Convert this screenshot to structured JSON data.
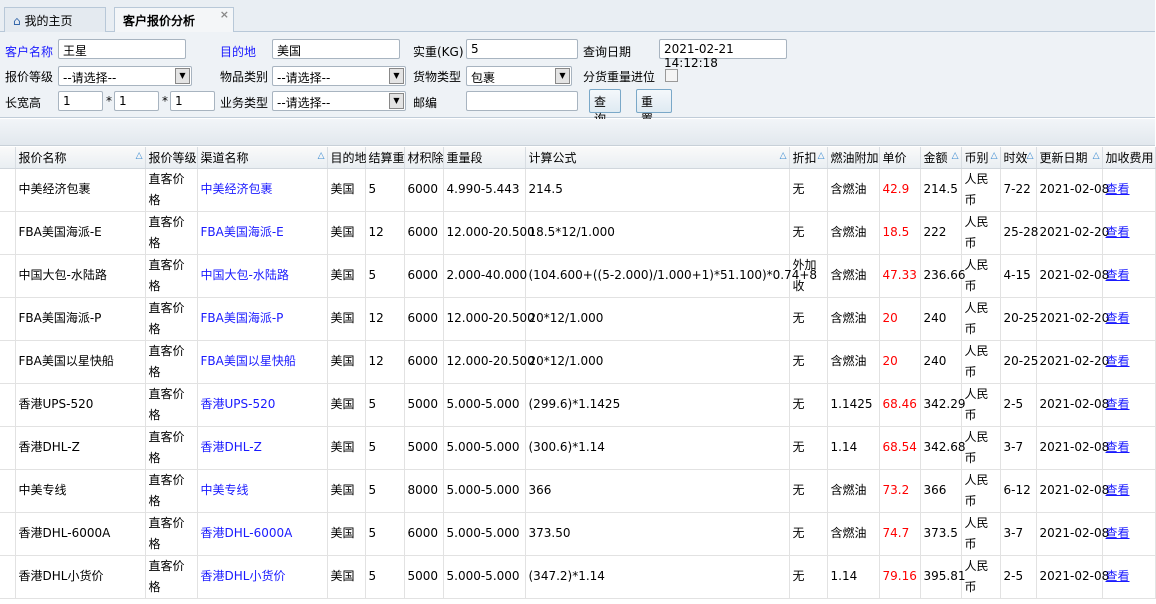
{
  "tabs": [
    {
      "label": "我的主页",
      "icon": "home-icon"
    },
    {
      "label": "客户报价分析",
      "close": "×"
    }
  ],
  "form": {
    "customer_label": "客户名称",
    "customer_value": "王星",
    "dest_label": "目的地",
    "dest_value": "美国",
    "weight_label": "实重(KG)",
    "weight_value": "5",
    "date_label": "查询日期",
    "date_value": "2021-02-21 14:12:18",
    "level_label": "报价等级",
    "level_value": "--请选择--",
    "item_label": "物品类别",
    "item_value": "--请选择--",
    "cargo_label": "货物类型",
    "cargo_value": "包裹",
    "split_label": "分货重量进位",
    "dims_label": "长宽高",
    "l": "1",
    "w": "1",
    "h": "1",
    "times": "*",
    "biz_label": "业务类型",
    "biz_value": "--请选择--",
    "zip_label": "邮编",
    "zip_value": "",
    "query": "查询",
    "reset": "重 置"
  },
  "table": {
    "columns": [
      "",
      "报价名称",
      "报价等级",
      "渠道名称",
      "目的地",
      "结算重",
      "材积除",
      "重量段",
      "计算公式",
      "折扣",
      "燃油附加",
      "单价",
      "金额",
      "币别",
      "时效",
      "更新日期",
      "加收费用"
    ],
    "rows": [
      [
        "中美经济包裹",
        "直客价格",
        "中美经济包裹",
        "美国",
        "5",
        "6000",
        "4.990-5.443",
        "214.5",
        "无",
        "含燃油",
        "42.9",
        "214.5",
        "人民币",
        "7-22",
        "2021-02-08",
        "查看"
      ],
      [
        "FBA美国海派-E",
        "直客价格",
        "FBA美国海派-E",
        "美国",
        "12",
        "6000",
        "12.000-20.500",
        "18.5*12/1.000",
        "无",
        "含燃油",
        "18.5",
        "222",
        "人民币",
        "25-28",
        "2021-02-20",
        "查看"
      ],
      [
        "中国大包-水陆路",
        "直客价格",
        "中国大包-水陆路",
        "美国",
        "5",
        "6000",
        "2.000-40.000",
        "(104.600+((5-2.000)/1.000+1)*51.100)*0.74+8",
        "外加收",
        "含燃油",
        "47.33",
        "236.66",
        "人民币",
        "4-15",
        "2021-02-08",
        "查看"
      ],
      [
        "FBA美国海派-P",
        "直客价格",
        "FBA美国海派-P",
        "美国",
        "12",
        "6000",
        "12.000-20.500",
        "20*12/1.000",
        "无",
        "含燃油",
        "20",
        "240",
        "人民币",
        "20-25",
        "2021-02-20",
        "查看"
      ],
      [
        "FBA美国以星快船",
        "直客价格",
        "FBA美国以星快船",
        "美国",
        "12",
        "6000",
        "12.000-20.500",
        "20*12/1.000",
        "无",
        "含燃油",
        "20",
        "240",
        "人民币",
        "20-25",
        "2021-02-20",
        "查看"
      ],
      [
        "香港UPS-520",
        "直客价格",
        "香港UPS-520",
        "美国",
        "5",
        "5000",
        "5.000-5.000",
        "(299.6)*1.1425",
        "无",
        "1.1425",
        "68.46",
        "342.29",
        "人民币",
        "2-5",
        "2021-02-08",
        "查看"
      ],
      [
        "香港DHL-Z",
        "直客价格",
        "香港DHL-Z",
        "美国",
        "5",
        "5000",
        "5.000-5.000",
        "(300.6)*1.14",
        "无",
        "1.14",
        "68.54",
        "342.68",
        "人民币",
        "3-7",
        "2021-02-08",
        "查看"
      ],
      [
        "中美专线",
        "直客价格",
        "中美专线",
        "美国",
        "5",
        "8000",
        "5.000-5.000",
        "366",
        "无",
        "含燃油",
        "73.2",
        "366",
        "人民币",
        "6-12",
        "2021-02-08",
        "查看"
      ],
      [
        "香港DHL-6000A",
        "直客价格",
        "香港DHL-6000A",
        "美国",
        "5",
        "6000",
        "5.000-5.000",
        "373.50",
        "无",
        "含燃油",
        "74.7",
        "373.5",
        "人民币",
        "3-7",
        "2021-02-08",
        "查看"
      ],
      [
        "香港DHL小货价",
        "直客价格",
        "香港DHL小货价",
        "美国",
        "5",
        "5000",
        "5.000-5.000",
        "(347.2)*1.14",
        "无",
        "1.14",
        "79.16",
        "395.81",
        "人民币",
        "2-5",
        "2021-02-08",
        "查看"
      ]
    ]
  },
  "colors": {
    "link": "#1a1aff",
    "amount": "#ff0000"
  }
}
